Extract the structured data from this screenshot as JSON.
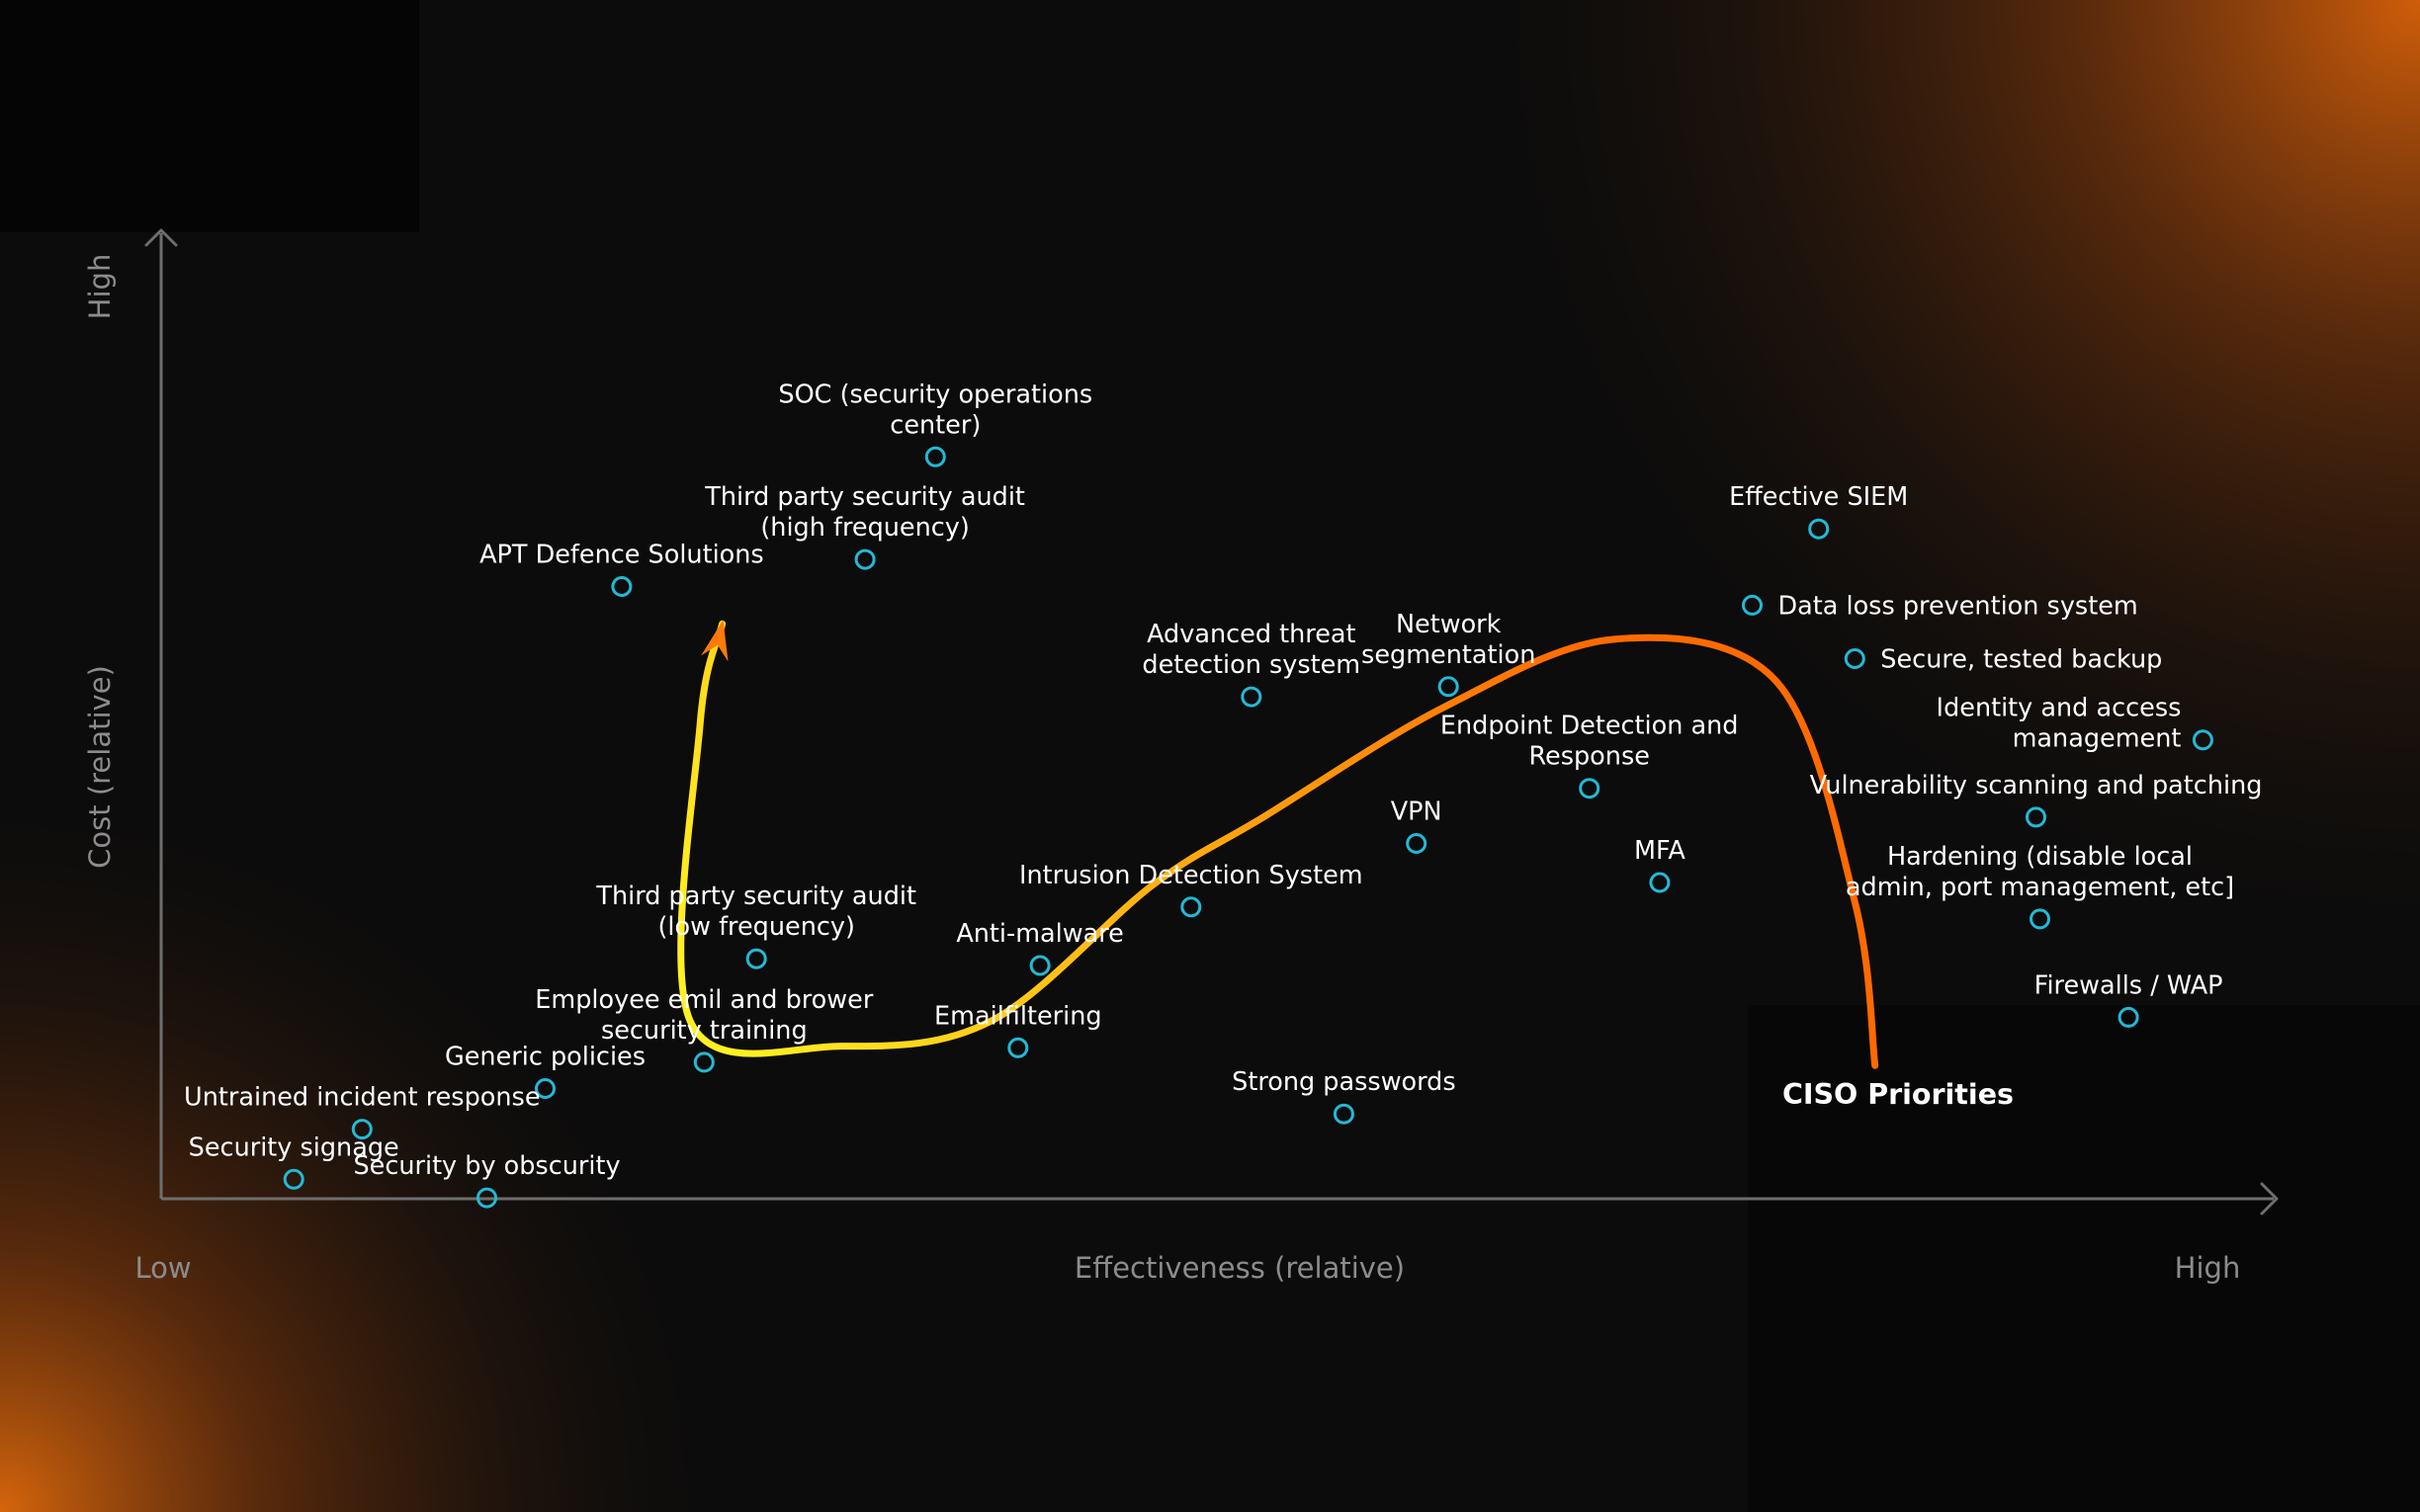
{
  "chart_data": {
    "type": "scatter",
    "xlabel": "Effectiveness (relative)",
    "ylabel": "Cost (relative)",
    "x_ticks": [
      "Low",
      "High"
    ],
    "y_ticks": [
      "High"
    ],
    "xlim": [
      0,
      100
    ],
    "ylim": [
      0,
      100
    ],
    "grid": false,
    "points": [
      {
        "label": "SOC (security operations center)",
        "lines": [
          "SOC (security operations",
          "center)"
        ],
        "x": 35.2,
        "y": 87.5
      },
      {
        "label": "Third party security audit (high frequency)",
        "lines": [
          "Third party security audit",
          "(high frequency)"
        ],
        "x": 31.7,
        "y": 75.4
      },
      {
        "label": "APT Defence Solutions",
        "lines": [
          "APT Defence Solutions"
        ],
        "x": 19.6,
        "y": 72.2
      },
      {
        "label": "Effective SIEM",
        "lines": [
          "Effective SIEM"
        ],
        "x": 79.1,
        "y": 79.0
      },
      {
        "label": "Data loss prevention system",
        "lines": [
          "Data loss prevention system"
        ],
        "x": 75.8,
        "y": 70.0
      },
      {
        "label": "Secure, tested backup",
        "lines": [
          "Secure, tested backup"
        ],
        "x": 80.9,
        "y": 63.7
      },
      {
        "label": "Identity and access management",
        "lines": [
          "Identity and access",
          "management"
        ],
        "x": 98.2,
        "y": 54.1
      },
      {
        "label": "Advanced threat detection system",
        "lines": [
          "Advanced threat",
          "detection system"
        ],
        "x": 50.9,
        "y": 59.2
      },
      {
        "label": "Network segmentation",
        "lines": [
          "Network",
          "segmentation"
        ],
        "x": 60.7,
        "y": 60.4
      },
      {
        "label": "Endpoint Detection and Response",
        "lines": [
          "Endpoint Detection and",
          "Response"
        ],
        "x": 67.7,
        "y": 48.4
      },
      {
        "label": "Vulnerability scanning and patching",
        "lines": [
          "Vulnerability scanning and patching"
        ],
        "x": 89.9,
        "y": 45.0
      },
      {
        "label": "VPN",
        "lines": [
          "VPN"
        ],
        "x": 59.1,
        "y": 41.9
      },
      {
        "label": "MFA",
        "lines": [
          "MFA"
        ],
        "x": 71.2,
        "y": 37.3
      },
      {
        "label": "Hardening (disable local admin, port management, etc]",
        "lines": [
          "Hardening (disable local",
          "admin, port management, etc]"
        ],
        "x": 90.1,
        "y": 33.0
      },
      {
        "label": "Intrusion Detection System",
        "lines": [
          "Intrusion Detection System"
        ],
        "x": 47.9,
        "y": 34.4
      },
      {
        "label": "Third party security audit (low frequency)",
        "lines": [
          "Third party security audit",
          "(low frequency)"
        ],
        "x": 26.3,
        "y": 28.3
      },
      {
        "label": "Anti-malware",
        "lines": [
          "Anti-malware"
        ],
        "x": 40.4,
        "y": 27.5
      },
      {
        "label": "Firewalls / WAP",
        "lines": [
          "Firewalls / WAP"
        ],
        "x": 94.5,
        "y": 21.4
      },
      {
        "label": "Emailfiltering",
        "lines": [
          "Emailfiltering"
        ],
        "x": 39.3,
        "y": 17.8
      },
      {
        "label": "Employee emil and brower security training",
        "lines": [
          "Employee emil and brower",
          "security training"
        ],
        "x": 23.7,
        "y": 16.1
      },
      {
        "label": "Generic policies",
        "lines": [
          "Generic policies"
        ],
        "x": 15.8,
        "y": 13.0
      },
      {
        "label": "Strong passwords",
        "lines": [
          "Strong passwords"
        ],
        "x": 55.5,
        "y": 10.0
      },
      {
        "label": "Untrained incident response",
        "lines": [
          "Untrained incident response"
        ],
        "x": 6.7,
        "y": 8.2
      },
      {
        "label": "Security signage",
        "lines": [
          "Security signage"
        ],
        "x": 3.3,
        "y": 2.3
      },
      {
        "label": "Security by obscurity",
        "lines": [
          "Security by obscurity"
        ],
        "x": 12.9,
        "y": 0.1
      }
    ],
    "curve": {
      "label": "CISO Priorities",
      "points": [
        [
          81.9,
          15.7
        ],
        [
          80.9,
          35.0
        ],
        [
          77.0,
          61.0
        ],
        [
          69.0,
          66.0
        ],
        [
          60.5,
          58.0
        ],
        [
          51.5,
          45.0
        ],
        [
          46.0,
          37.0
        ],
        [
          38.0,
          21.0
        ],
        [
          30.5,
          18.0
        ],
        [
          23.0,
          21.0
        ],
        [
          23.5,
          56.0
        ],
        [
          24.6,
          67.8
        ]
      ]
    }
  },
  "colors": {
    "background": "#0c0c0c",
    "glow": "#d9620a",
    "marker": "#22b9d6",
    "axis": "#6e6e6e",
    "curve_start": "#ff6a00",
    "curve_end": "#fff022"
  }
}
